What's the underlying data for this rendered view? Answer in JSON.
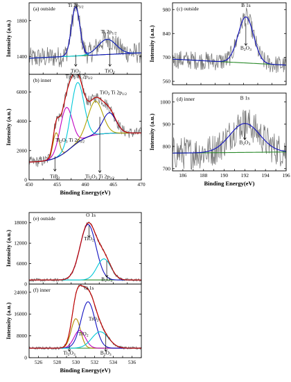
{
  "chart_data": [
    {
      "id": "a",
      "type": "line",
      "panel_label": "(a)  outside",
      "xlim": [
        450,
        470
      ],
      "ylim": [
        1200,
        2000
      ],
      "yticks": [
        1400,
        1800
      ],
      "ylabel": "Intensity  (a.u.)",
      "xlabel": "",
      "peaks": [
        {
          "c": 458.3,
          "h": 550,
          "w": 0.75,
          "color": "#1010c0"
        },
        {
          "c": 463.9,
          "h": 170,
          "w": 1.6,
          "color": "#00c8d8"
        }
      ],
      "baseline": {
        "from": 1380,
        "to": 1440,
        "color": "#2a8a2a"
      },
      "envelope": "#2020b0",
      "noise": 120,
      "annotations": [
        {
          "text": "Ti  2p",
          "sub": "3/2",
          "x": 458.3,
          "y": 1955
        },
        {
          "text": "Ti  2p",
          "sub": "1/2",
          "x": 464.2,
          "y": 1660
        },
        {
          "text": "TiO",
          "sub": "2",
          "x": 458.3,
          "y": 1220,
          "arrowFrom": 1420,
          "arrowTo": 1290
        },
        {
          "text": "TiO",
          "sub": "2",
          "x": 464.4,
          "y": 1220,
          "arrowFrom": 1490,
          "arrowTo": 1290
        }
      ]
    },
    {
      "id": "b",
      "type": "line",
      "panel_label": "(b)  inner",
      "xlim": [
        450,
        470
      ],
      "ylim": [
        0,
        7200
      ],
      "xticks": [
        450,
        455,
        460,
        465,
        470
      ],
      "yticks": [
        0,
        2000,
        4000,
        6000
      ],
      "ylabel": "Intensity  (a.u.)",
      "xlabel": "Binding Energy(eV)",
      "peaks": [
        {
          "c": 454.8,
          "h": 1700,
          "w": 0.55,
          "color": "#b08a00"
        },
        {
          "c": 456.6,
          "h": 3000,
          "w": 1.1,
          "color": "#c000c0"
        },
        {
          "c": 458.6,
          "h": 4100,
          "w": 1.15,
          "color": "#00c8d8"
        },
        {
          "c": 461.8,
          "h": 2300,
          "w": 1.3,
          "color": "#b0a000"
        },
        {
          "c": 464.3,
          "h": 1400,
          "w": 1.2,
          "color": "#1010c0"
        }
      ],
      "baseline": {
        "from": 1200,
        "to": 3200,
        "color": "#2a8a2a",
        "step": true
      },
      "envelope": "#c00000",
      "noise": 380,
      "annotations": [
        {
          "text": "TiO",
          "sub": "2",
          "x": 458.9,
          "y": 6950,
          "after": " Ti 2p",
          "after_sub": "3/2"
        },
        {
          "text": "TiO",
          "sub": "2",
          "x": 465.0,
          "y": 5850,
          "after": " Ti 2p",
          "after_sub": "1/2"
        },
        {
          "text": "Ti",
          "sub": "2",
          "x": 457.3,
          "y": 2600,
          "after": "O",
          "after_sub": "3",
          "tail": " Ti 2p",
          "tail_sub": "3/2"
        },
        {
          "text": "Ti",
          "sub": "2",
          "x": 462.6,
          "y": 120,
          "after": "O",
          "after_sub": "3",
          "tail": " Ti 2p",
          "tail_sub": "3/2",
          "arrowFrom": 4300,
          "arrowTo": 500
        },
        {
          "text": "TiB",
          "sub": "2",
          "x": 454.6,
          "y": 120,
          "arrowFrom": 1600,
          "arrowTo": 600
        }
      ]
    },
    {
      "id": "c",
      "type": "line",
      "panel_label": "(c)  outside",
      "xlim": [
        185,
        196
      ],
      "ylim": [
        540,
        1020
      ],
      "yticks": [
        560,
        700,
        840,
        980
      ],
      "ylabel": "Intensity  (a.u.)",
      "xlabel": "",
      "peaks": [
        {
          "c": 192.1,
          "h": 270,
          "w": 0.75,
          "color": "#1010c0"
        }
      ],
      "baseline": {
        "from": 690,
        "to": 655,
        "color": "#2a8a2a"
      },
      "envelope": "#2020b0",
      "noise": 55,
      "annotations": [
        {
          "text": "B 1s",
          "sub": "",
          "x": 192.1,
          "y": 995
        },
        {
          "text": "B",
          "sub": "2",
          "x": 192.1,
          "y": 745,
          "after": "O",
          "after_sub": "3",
          "arrowFrom": 900,
          "arrowTo": 770
        }
      ]
    },
    {
      "id": "d",
      "type": "line",
      "panel_label": "(d)  inner",
      "xlim": [
        185,
        196
      ],
      "ylim": [
        690,
        1040
      ],
      "xticks": [
        186,
        188,
        190,
        192,
        194,
        196
      ],
      "yticks": [
        700,
        800,
        900,
        1000
      ],
      "ylabel": "Intensity  (a.u.)",
      "xlabel": "Binding Energy(eV)",
      "peaks": [
        {
          "c": 192.0,
          "h": 130,
          "w": 1.45,
          "color": "#1010c0"
        }
      ],
      "baseline": {
        "from": 770,
        "to": 775,
        "color": "#2a8a2a"
      },
      "envelope": "#2020b0",
      "noise": 75,
      "annotations": [
        {
          "text": "B 1s",
          "sub": "",
          "x": 192.0,
          "y": 1010
        },
        {
          "text": "B",
          "sub": "2",
          "x": 192.0,
          "y": 810,
          "after": "O",
          "after_sub": "3",
          "arrowFrom": 960,
          "arrowTo": 830
        }
      ]
    },
    {
      "id": "e",
      "type": "line",
      "panel_label": "(e)  outside",
      "xlim": [
        525,
        537
      ],
      "ylim": [
        0,
        21000
      ],
      "yticks": [
        0,
        6000,
        12000,
        18000
      ],
      "ylabel": "Intensity  (a.u.)",
      "xlabel": "",
      "peaks": [
        {
          "c": 531.3,
          "h": 16300,
          "w": 0.85,
          "color": "#1010c0"
        },
        {
          "c": 533.0,
          "h": 6200,
          "w": 0.75,
          "color": "#00c8d8"
        }
      ],
      "baseline": {
        "from": 1200,
        "to": 1200,
        "color": "#2a8a2a"
      },
      "envelope": "#c00000",
      "noise": 450,
      "annotations": [
        {
          "text": "O 1s",
          "sub": "",
          "x": 531.6,
          "y": 19800
        },
        {
          "text": "TiO",
          "sub": "2",
          "x": 531.4,
          "y": 12800,
          "arrowFrom": 17200,
          "arrowTo": 13700
        },
        {
          "text": "B",
          "sub": "2",
          "x": 533.3,
          "y": 900,
          "after": "O",
          "after_sub": "3",
          "arrowFrom": 6800,
          "arrowTo": 2000
        }
      ]
    },
    {
      "id": "f",
      "type": "line",
      "panel_label": "(f)  inner",
      "xlim": [
        525,
        537
      ],
      "ylim": [
        0,
        27000
      ],
      "xticks": [
        526,
        528,
        530,
        532,
        534,
        536
      ],
      "yticks": [
        0,
        8000,
        16000,
        24000
      ],
      "ylabel": "Intensity  (a.u.)",
      "xlabel": "Binding Energy(eV)",
      "peaks": [
        {
          "c": 530.0,
          "h": 10800,
          "w": 0.5,
          "color": "#b08a00"
        },
        {
          "c": 530.4,
          "h": 6500,
          "w": 0.6,
          "color": "#c000c0"
        },
        {
          "c": 531.3,
          "h": 17000,
          "w": 0.75,
          "color": "#1010c0"
        },
        {
          "c": 532.6,
          "h": 6000,
          "w": 0.9,
          "color": "#00c8d8"
        }
      ],
      "baseline": {
        "from": 3500,
        "to": 3500,
        "color": "#2a8a2a"
      },
      "envelope": "#c00000",
      "noise": 500,
      "annotations": [
        {
          "text": "O 1s",
          "sub": "",
          "x": 531.4,
          "y": 25000
        },
        {
          "text": "TiO",
          "sub": "2",
          "x": 531.9,
          "y": 13600
        },
        {
          "text": "TiO",
          "sub": "2",
          "x": 530.8,
          "y": 8200
        },
        {
          "text": "Ti",
          "sub": "2",
          "x": 529.3,
          "y": 1200,
          "after": "O",
          "after_sub": "3",
          "arrowFrom": 5200,
          "arrowTo": 2300
        },
        {
          "text": "B",
          "sub": "2",
          "x": 533.2,
          "y": 1200,
          "after": "O",
          "after_sub": "3",
          "arrowFrom": 8600,
          "arrowTo": 2300
        }
      ]
    }
  ]
}
